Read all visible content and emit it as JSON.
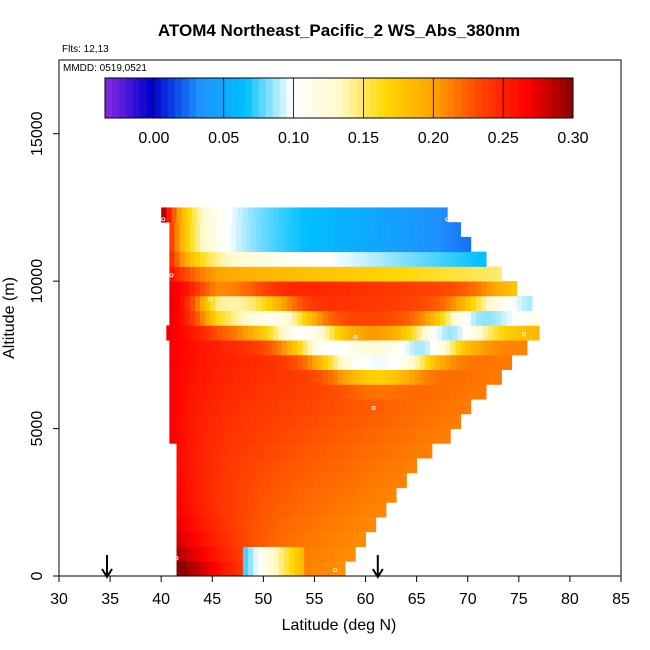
{
  "chart_data": {
    "type": "heatmap",
    "title": "ATOM4 Northeast_Pacific_2 WS_Abs_380nm",
    "flights_label": "Flts: 12,13",
    "dates_label": "MMDD: 0519,0521",
    "xlabel": "Latitude (deg N)",
    "ylabel": "Altitude (m)",
    "xlim": [
      30,
      85
    ],
    "ylim": [
      0,
      17500
    ],
    "x_ticks": [
      30,
      35,
      40,
      45,
      50,
      55,
      60,
      65,
      70,
      75,
      80,
      85
    ],
    "y_ticks": [
      0,
      5000,
      10000,
      15000
    ],
    "x_tick_labels": [
      "30",
      "35",
      "40",
      "45",
      "50",
      "55",
      "60",
      "65",
      "70",
      "75",
      "80",
      "85"
    ],
    "y_tick_labels": [
      "0",
      "5000",
      "10000",
      "15000"
    ],
    "colorbar": {
      "min": -0.035,
      "max": 0.3,
      "ticks": [
        0.0,
        0.05,
        0.1,
        0.15,
        0.2,
        0.25,
        0.3
      ],
      "tick_labels": [
        "0.00",
        "0.05",
        "0.10",
        "0.15",
        "0.20",
        "0.25",
        "0.30"
      ],
      "colors": [
        "#8a2be2",
        "#0000cd",
        "#1e90ff",
        "#00bfff",
        "#ffffff",
        "#fffacd",
        "#ffd700",
        "#ffa500",
        "#ff4500",
        "#ff0000",
        "#8b0000"
      ]
    },
    "arrows_lat": [
      34.7,
      61.2
    ],
    "region": {
      "lat_start": 40.0,
      "lat_step": 0.5,
      "alt_start": 500,
      "alt_step": 500,
      "rows": [
        {
          "alt": 500,
          "lat_max": 58.0
        },
        {
          "alt": 1000,
          "lat_max": 59.0
        },
        {
          "alt": 1500,
          "lat_max": 60.0
        },
        {
          "alt": 2000,
          "lat_max": 61.0
        },
        {
          "alt": 2500,
          "lat_max": 62.0
        },
        {
          "alt": 3000,
          "lat_max": 63.0
        },
        {
          "alt": 3500,
          "lat_max": 64.0
        },
        {
          "alt": 4000,
          "lat_max": 65.0
        },
        {
          "alt": 4500,
          "lat_max": 66.5
        },
        {
          "alt": 5000,
          "lat_max": 68.0
        },
        {
          "alt": 5500,
          "lat_max": 69.0
        },
        {
          "alt": 6000,
          "lat_max": 70.0
        },
        {
          "alt": 6500,
          "lat_max": 71.5
        },
        {
          "alt": 7000,
          "lat_max": 73.0
        },
        {
          "alt": 7500,
          "lat_max": 74.0
        },
        {
          "alt": 8000,
          "lat_max": 75.5
        },
        {
          "alt": 8500,
          "lat_max": 77.0
        },
        {
          "alt": 9000,
          "lat_max": 77.0
        },
        {
          "alt": 9500,
          "lat_max": 76.0
        },
        {
          "alt": 10000,
          "lat_max": 74.5
        },
        {
          "alt": 10500,
          "lat_max": 73.0
        },
        {
          "alt": 11000,
          "lat_max": 71.5
        },
        {
          "alt": 11500,
          "lat_max": 70.0
        },
        {
          "alt": 12000,
          "lat_max": 69.0
        },
        {
          "alt": 12500,
          "lat_max": 68.0
        }
      ]
    },
    "profile_points": [
      {
        "lat": 41.5,
        "alt": 600
      },
      {
        "lat": 50.0,
        "alt": 400
      },
      {
        "lat": 57.0,
        "alt": 200
      },
      {
        "lat": 60.8,
        "alt": 5700
      },
      {
        "lat": 59.0,
        "alt": 8100
      },
      {
        "lat": 75.5,
        "alt": 8200
      },
      {
        "lat": 77.0,
        "alt": 8900
      },
      {
        "lat": 44.8,
        "alt": 9400
      },
      {
        "lat": 41.0,
        "alt": 10200
      },
      {
        "lat": 40.2,
        "alt": 12100
      },
      {
        "lat": 68.0,
        "alt": 12100
      }
    ]
  }
}
